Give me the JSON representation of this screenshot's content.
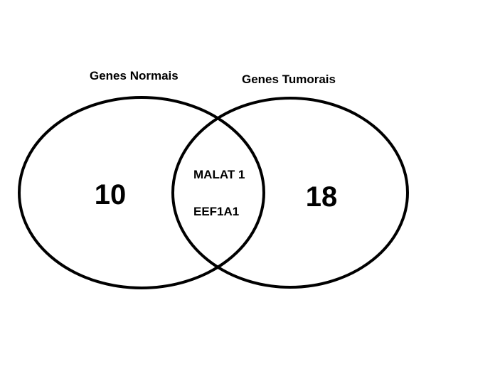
{
  "sets": {
    "left": {
      "label": "Genes Normais",
      "count": "10"
    },
    "right": {
      "label": "Genes Tumorais",
      "count": "18"
    }
  },
  "intersection": {
    "genes": [
      "MALAT 1",
      "EEF1A1"
    ]
  },
  "colors": {
    "stroke": "#000000",
    "background": "#ffffff",
    "text": "#000000"
  }
}
